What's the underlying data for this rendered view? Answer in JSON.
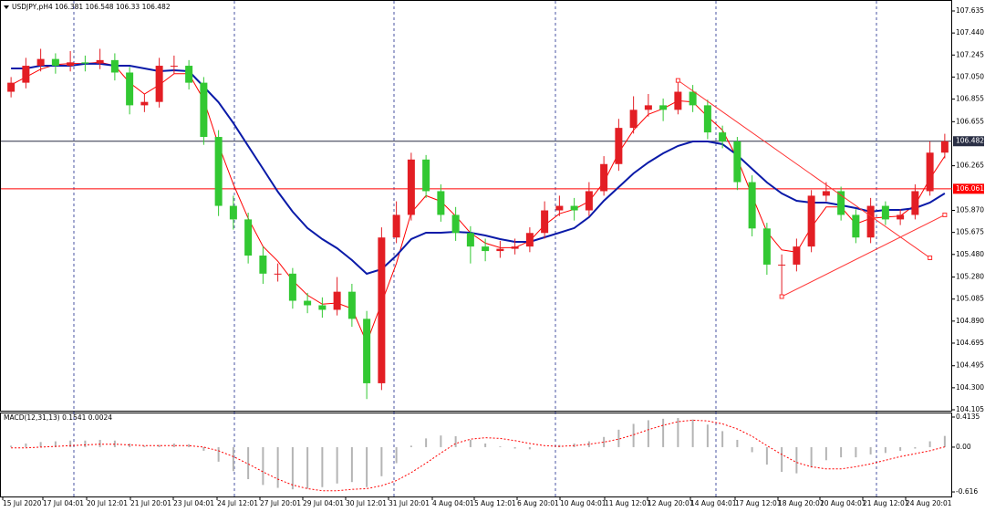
{
  "chart_data": {
    "type": "candlestick",
    "title": "USDJPY,pH4",
    "bull_color": "#e31e24",
    "bear_color": "#32c832",
    "ylim": [
      104.097,
      107.732
    ],
    "yticks": [
      107.635,
      {
        "value": 107.44,
        "label": "107.440"
      },
      107.245,
      {
        "value": 107.05,
        "label": "107.050"
      },
      106.855,
      106.655,
      106.265,
      {
        "value": 105.87,
        "label": "105.870"
      },
      105.675,
      {
        "value": 105.48,
        "label": "105.480"
      },
      {
        "value": 105.28,
        "label": "105.280"
      },
      105.085,
      {
        "value": 104.89,
        "label": "104.890"
      },
      104.695,
      104.495,
      {
        "value": 104.3,
        "label": "104.300"
      },
      104.105
    ],
    "candles": {
      "open": [
        106.92,
        107.0,
        107.15,
        107.21,
        107.15,
        107.18,
        107.17,
        107.2,
        107.09,
        106.8,
        106.83,
        107.15,
        107.15,
        107.0,
        106.52,
        105.91,
        105.79,
        105.47,
        105.31,
        105.31,
        105.07,
        105.03,
        104.99,
        105.15,
        104.91,
        104.34,
        105.63,
        105.83,
        106.32,
        106.04,
        105.83,
        105.67,
        105.55,
        105.51,
        105.53,
        105.55,
        105.67,
        105.87,
        105.91,
        105.87,
        106.04,
        106.28,
        106.6,
        106.76,
        106.8,
        106.76,
        106.92,
        106.8,
        106.56,
        106.48,
        106.12,
        105.71,
        105.39,
        105.39,
        105.55,
        106.0,
        106.04,
        105.83,
        105.63,
        105.91,
        105.79,
        105.83,
        106.04,
        106.381
      ],
      "high": [
        107.05,
        107.22,
        107.3,
        107.26,
        107.28,
        107.24,
        107.3,
        107.26,
        107.14,
        106.9,
        107.22,
        107.24,
        107.2,
        107.05,
        106.58,
        106.0,
        105.85,
        105.55,
        105.4,
        105.36,
        105.14,
        105.1,
        105.28,
        105.22,
        104.98,
        105.72,
        105.95,
        106.38,
        106.36,
        106.1,
        105.9,
        105.73,
        105.62,
        105.6,
        105.62,
        105.72,
        105.95,
        106.0,
        105.98,
        106.12,
        106.35,
        106.68,
        106.88,
        106.9,
        106.86,
        107.01,
        106.98,
        106.85,
        106.62,
        106.52,
        106.18,
        105.76,
        105.48,
        105.62,
        106.05,
        106.12,
        106.08,
        105.88,
        105.98,
        105.95,
        105.88,
        106.1,
        106.48,
        106.548
      ],
      "low": [
        106.87,
        106.95,
        107.1,
        107.08,
        107.1,
        107.1,
        107.12,
        107.02,
        106.72,
        106.74,
        106.78,
        107.08,
        106.94,
        106.45,
        105.82,
        105.7,
        105.4,
        105.22,
        105.24,
        105.0,
        104.96,
        104.92,
        104.94,
        104.84,
        104.2,
        104.28,
        105.58,
        105.78,
        105.98,
        105.77,
        105.6,
        105.4,
        105.42,
        105.45,
        105.48,
        105.5,
        105.62,
        105.82,
        105.78,
        105.82,
        106.0,
        106.22,
        106.55,
        106.7,
        106.66,
        106.72,
        106.74,
        106.5,
        106.42,
        106.05,
        105.64,
        105.3,
        105.11,
        105.33,
        105.5,
        105.95,
        105.78,
        105.58,
        105.58,
        105.74,
        105.74,
        105.79,
        106.0,
        106.33
      ],
      "close": [
        107.0,
        107.15,
        107.21,
        107.15,
        107.18,
        107.17,
        107.2,
        107.09,
        106.8,
        106.83,
        107.15,
        107.15,
        107.0,
        106.52,
        105.91,
        105.79,
        105.47,
        105.31,
        105.31,
        105.07,
        105.03,
        104.99,
        105.15,
        104.91,
        104.34,
        105.63,
        105.83,
        106.32,
        106.04,
        105.83,
        105.67,
        105.55,
        105.51,
        105.53,
        105.55,
        105.67,
        105.87,
        105.91,
        105.87,
        106.04,
        106.28,
        106.6,
        106.76,
        106.8,
        106.76,
        106.92,
        106.8,
        106.56,
        106.48,
        106.12,
        105.71,
        105.39,
        105.39,
        105.55,
        106.0,
        106.04,
        105.83,
        105.63,
        105.91,
        105.79,
        105.83,
        106.04,
        106.381,
        106.482
      ]
    },
    "ma_lines": [
      {
        "color": "#ff0000",
        "values": [
          106.98,
          107.05,
          107.12,
          107.16,
          107.17,
          107.17,
          107.18,
          107.15,
          107.0,
          106.9,
          106.98,
          107.08,
          107.08,
          106.85,
          106.45,
          106.1,
          105.8,
          105.55,
          105.42,
          105.25,
          105.12,
          105.04,
          105.05,
          105.0,
          104.7,
          105.05,
          105.4,
          105.85,
          106.0,
          105.95,
          105.82,
          105.67,
          105.58,
          105.54,
          105.54,
          105.6,
          105.74,
          105.84,
          105.88,
          105.95,
          106.12,
          106.38,
          106.58,
          106.72,
          106.77,
          106.84,
          106.83,
          106.7,
          106.58,
          106.33,
          106.0,
          105.68,
          105.52,
          105.5,
          105.72,
          105.9,
          105.9,
          105.75,
          105.8,
          105.81,
          105.82,
          105.92,
          106.15,
          106.35
        ]
      },
      {
        "color": "#0a1aa8",
        "values": [
          107.126,
          107.126,
          107.15,
          107.15,
          107.15,
          107.167,
          107.167,
          107.15,
          107.15,
          107.126,
          107.102,
          107.11,
          107.102,
          106.965,
          106.827,
          106.642,
          106.44,
          106.238,
          106.036,
          105.858,
          105.713,
          105.616,
          105.535,
          105.43,
          105.309,
          105.349,
          105.47,
          105.616,
          105.672,
          105.672,
          105.68,
          105.672,
          105.648,
          105.616,
          105.591,
          105.591,
          105.632,
          105.672,
          105.713,
          105.81,
          105.955,
          106.076,
          106.197,
          106.294,
          106.375,
          106.44,
          106.48,
          106.48,
          106.456,
          106.359,
          106.238,
          106.117,
          106.02,
          105.955,
          105.939,
          105.939,
          105.915,
          105.89,
          105.858,
          105.874,
          105.874,
          105.89,
          105.939,
          106.02
        ]
      }
    ],
    "hlines": [
      {
        "value": 106.482,
        "color": "#2a2f45"
      },
      {
        "value": 106.061,
        "color": "#ff0000"
      }
    ],
    "trendlines": [
      {
        "color": "#ff3030",
        "start": [
          45,
          107.02
        ],
        "end": [
          62,
          105.45
        ]
      },
      {
        "color": "#ff3030",
        "start": [
          52,
          105.107
        ],
        "end": [
          63,
          105.83
        ]
      }
    ],
    "xtick_labels": [
      "15 Jul 2020",
      "17 Jul 04:01",
      "20 Jul 12:01",
      "21 Jul 20:01",
      "23 Jul 04:01",
      "24 Jul 12:01",
      "27 Jul 20:01",
      "29 Jul 04:01",
      "30 Jul 12:01",
      "31 Jul 20:01",
      "4 Aug 04:01",
      "5 Aug 12:01",
      "6 Aug 20:01",
      "10 Aug 04:01",
      "11 Aug 12:01",
      "12 Aug 20:01",
      "14 Aug 04:01",
      "17 Aug 12:01",
      "18 Aug 20:01",
      "20 Aug 04:01",
      "21 Aug 12:01",
      "24 Aug 20:01"
    ],
    "macd": {
      "title": "MACD(12,31,13)",
      "hist_color": "#b4b4b4",
      "signal_color": "#ff0000",
      "ylim": [
        -0.691,
        0.476
      ],
      "yticks": [
        0.4135,
        {
          "value": 0,
          "label": "0.00"
        },
        -0.616
      ],
      "histogram": [
        0.02,
        0.05,
        0.07,
        0.08,
        0.09,
        0.09,
        0.1,
        0.09,
        0.05,
        0.02,
        0.03,
        0.05,
        0.04,
        -0.05,
        -0.2,
        -0.33,
        -0.44,
        -0.52,
        -0.56,
        -0.58,
        -0.57,
        -0.55,
        -0.5,
        -0.48,
        -0.55,
        -0.4,
        -0.22,
        0.02,
        0.12,
        0.16,
        0.15,
        0.1,
        0.05,
        0.01,
        -0.02,
        -0.03,
        0.0,
        0.03,
        0.05,
        0.08,
        0.14,
        0.24,
        0.32,
        0.37,
        0.39,
        0.4,
        0.38,
        0.31,
        0.22,
        0.1,
        -0.07,
        -0.24,
        -0.34,
        -0.36,
        -0.28,
        -0.18,
        -0.14,
        -0.14,
        -0.1,
        -0.08,
        -0.05,
        -0.02,
        0.08,
        0.1541
      ],
      "signal": [
        -0.01,
        -0.01,
        0.0,
        0.01,
        0.02,
        0.03,
        0.04,
        0.04,
        0.03,
        0.02,
        0.02,
        0.02,
        0.02,
        0.0,
        -0.05,
        -0.13,
        -0.23,
        -0.34,
        -0.44,
        -0.52,
        -0.57,
        -0.6,
        -0.6,
        -0.58,
        -0.57,
        -0.53,
        -0.46,
        -0.35,
        -0.22,
        -0.08,
        0.05,
        0.11,
        0.13,
        0.12,
        0.09,
        0.05,
        0.02,
        0.01,
        0.02,
        0.04,
        0.07,
        0.11,
        0.17,
        0.24,
        0.3,
        0.35,
        0.37,
        0.36,
        0.32,
        0.25,
        0.15,
        0.02,
        -0.1,
        -0.21,
        -0.27,
        -0.3,
        -0.3,
        -0.27,
        -0.23,
        -0.18,
        -0.13,
        -0.09,
        -0.05,
        0.0024
      ]
    }
  }
}
